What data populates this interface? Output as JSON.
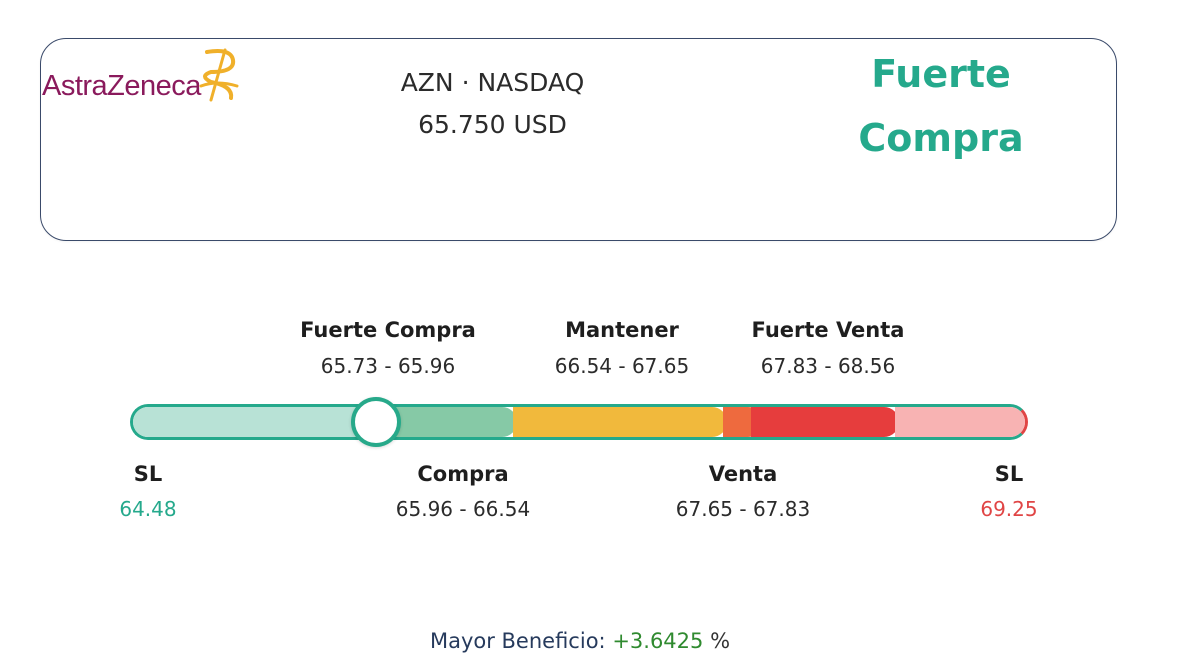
{
  "company": {
    "logo_text": "AstraZeneca",
    "ticker_line": "AZN · NASDAQ",
    "price_line": "65.750 USD"
  },
  "signal": {
    "line1": "Fuerte",
    "line2": "Compra",
    "color": "#25a98c"
  },
  "zones_top": [
    {
      "label": "Fuerte Compra",
      "range": "65.73 - 65.96"
    },
    {
      "label": "Mantener",
      "range": "66.54 - 67.65"
    },
    {
      "label": "Fuerte Venta",
      "range": "67.83 - 68.56"
    }
  ],
  "zones_bottom": [
    {
      "label": "SL",
      "value": "64.48",
      "color": "#25a98c"
    },
    {
      "label": "Compra",
      "range": "65.96 - 66.54"
    },
    {
      "label": "Venta",
      "range": "67.65 - 67.83"
    },
    {
      "label": "SL",
      "value": "69.25",
      "color": "#e04545"
    }
  ],
  "gauge": {
    "colors": {
      "stop_loss_low": "#b8e2d6",
      "compra": "#86c9a6",
      "mantener": "#f1b93c",
      "venta": "#ee6a3e",
      "fuerte_venta": "#e63d3d",
      "stop_loss_high": "#f8b3b3"
    },
    "current_value": 65.75
  },
  "footer": {
    "label": "Mayor Beneficio:",
    "value": "+3.6425",
    "unit": "%"
  }
}
